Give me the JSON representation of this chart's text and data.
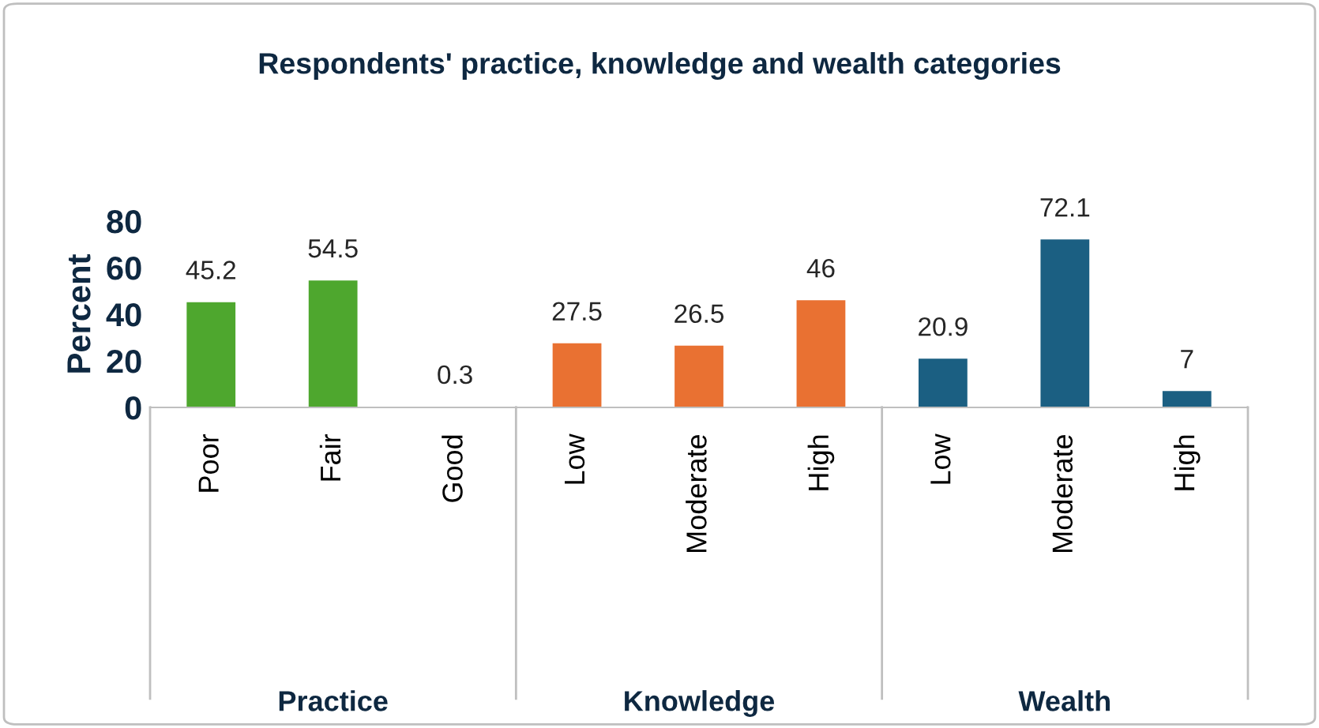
{
  "chart_data": {
    "type": "bar",
    "title": "Respondents' practice, knowledge and wealth categories",
    "ylabel": "Percent",
    "categories": [
      "Poor",
      "Fair",
      "Good",
      "Low",
      "Moderate",
      "High",
      "Low",
      "Moderate",
      "High"
    ],
    "values": [
      45.2,
      54.5,
      0.3,
      27.5,
      26.5,
      46,
      20.9,
      72.1,
      7
    ],
    "colors": [
      "#4ea72e",
      "#4ea72e",
      "#4ea72e",
      "#e97132",
      "#e97132",
      "#e97132",
      "#1b5f82",
      "#1b5f82",
      "#1b5f82"
    ],
    "ylim": [
      0,
      80
    ],
    "yticks": [
      0,
      20,
      40,
      60,
      80
    ],
    "grid": false,
    "data_labels": true,
    "annotations": [
      "Practice",
      "Knowledge",
      "Wealth"
    ]
  }
}
